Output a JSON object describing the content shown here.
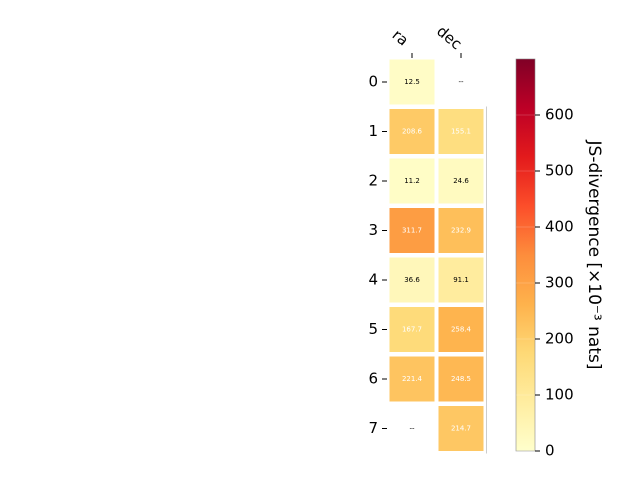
{
  "chart_data": {
    "type": "heatmap",
    "columns": [
      "ra",
      "dec"
    ],
    "rows": [
      "0",
      "1",
      "2",
      "3",
      "4",
      "5",
      "6",
      "7"
    ],
    "values": [
      [
        12.5,
        null
      ],
      [
        208.6,
        155.1
      ],
      [
        11.2,
        24.6
      ],
      [
        311.7,
        232.9
      ],
      [
        36.6,
        91.1
      ],
      [
        167.7,
        258.4
      ],
      [
        221.4,
        248.5
      ],
      [
        null,
        214.7
      ]
    ],
    "cell_labels": [
      [
        "12.5",
        "--"
      ],
      [
        "208.6",
        "155.1"
      ],
      [
        "11.2",
        "24.6"
      ],
      [
        "311.7",
        "232.9"
      ],
      [
        "36.6",
        "91.1"
      ],
      [
        "167.7",
        "258.4"
      ],
      [
        "221.4",
        "248.5"
      ],
      [
        "--",
        "214.7"
      ]
    ],
    "colorbar": {
      "label": "JS-divergence [×10⁻³ nats]",
      "range": [
        0,
        700
      ],
      "ticks": [
        "0",
        "100",
        "200",
        "300",
        "400",
        "500",
        "600"
      ],
      "tick_values": [
        0,
        100,
        200,
        300,
        400,
        500,
        600
      ],
      "colormap": "YlOrRd"
    },
    "colors": {
      "light_text": "#ffffff",
      "dark_text": "#000000"
    }
  }
}
